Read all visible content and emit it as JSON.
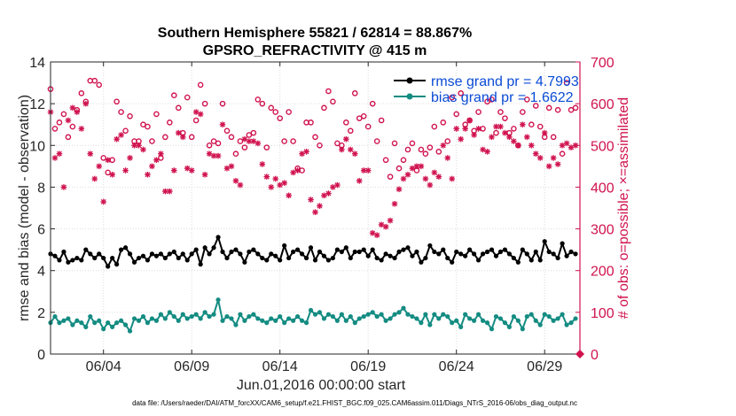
{
  "chart_data": {
    "type": "line",
    "title": "Southern Hemisphere 55821 / 62814 = 88.867%",
    "subtitle": "GPSRO_REFRACTIVITY @ 415 m",
    "xlabel": "Jun.01,2016 00:00:00 start",
    "ylabel": "rmse and bias (model - observation)",
    "ylabel_right": "# of obs: o=possible; ×=assimilated",
    "x_range": [
      1,
      31
    ],
    "ylim": [
      0,
      14
    ],
    "ylim_right": [
      0,
      700
    ],
    "x_ticks": [
      4,
      9,
      14,
      19,
      24,
      29
    ],
    "x_tick_labels": [
      "06/04",
      "06/09",
      "06/14",
      "06/19",
      "06/24",
      "06/29"
    ],
    "y_ticks": [
      0,
      2,
      4,
      6,
      8,
      10,
      12,
      14
    ],
    "y_ticks_right": [
      0,
      100,
      200,
      300,
      400,
      500,
      600,
      700
    ],
    "grid": true,
    "legend_position": "top-right",
    "footer": "data file: /Users/raeder/DAI/ATM_forcXX/CAM6_setup/f.e21.FHIST_BGC.f09_025.CAM6assim.011/Diags_NTrS_2016-06/obs_diag_output.nc",
    "colors": {
      "rmse": "#000000",
      "bias": "#148c82",
      "obs": "#d0134f"
    },
    "series": [
      {
        "name": "rmse grand pr = 4.7993",
        "color": "#000000",
        "axis": "left",
        "x": [
          1.0,
          1.25,
          1.5,
          1.75,
          2.0,
          2.25,
          2.5,
          2.75,
          3.0,
          3.25,
          3.5,
          3.75,
          4.0,
          4.25,
          4.5,
          4.75,
          5.0,
          5.25,
          5.5,
          5.75,
          6.0,
          6.25,
          6.5,
          6.75,
          7.0,
          7.25,
          7.5,
          7.75,
          8.0,
          8.25,
          8.5,
          8.75,
          9.0,
          9.25,
          9.5,
          9.75,
          10.0,
          10.25,
          10.5,
          10.75,
          11.0,
          11.25,
          11.5,
          11.75,
          12.0,
          12.25,
          12.5,
          12.75,
          13.0,
          13.25,
          13.5,
          13.75,
          14.0,
          14.25,
          14.5,
          14.75,
          15.0,
          15.25,
          15.5,
          15.75,
          16.0,
          16.25,
          16.5,
          16.75,
          17.0,
          17.25,
          17.5,
          17.75,
          18.0,
          18.25,
          18.5,
          18.75,
          19.0,
          19.25,
          19.5,
          19.75,
          20.0,
          20.25,
          20.5,
          20.75,
          21.0,
          21.25,
          21.5,
          21.75,
          22.0,
          22.25,
          22.5,
          22.75,
          23.0,
          23.25,
          23.5,
          23.75,
          24.0,
          24.25,
          24.5,
          24.75,
          25.0,
          25.25,
          25.5,
          25.75,
          26.0,
          26.25,
          26.5,
          26.75,
          27.0,
          27.25,
          27.5,
          27.75,
          28.0,
          28.25,
          28.5,
          28.75,
          29.0,
          29.25,
          29.5,
          29.75,
          30.0,
          30.25,
          30.5,
          30.75
        ],
        "values": [
          4.8,
          4.7,
          4.5,
          4.9,
          4.4,
          4.5,
          4.6,
          4.5,
          5.0,
          4.8,
          4.6,
          4.8,
          4.6,
          4.2,
          4.6,
          4.3,
          5.0,
          5.1,
          4.8,
          4.4,
          4.6,
          4.7,
          4.5,
          4.8,
          4.7,
          4.8,
          4.6,
          4.8,
          4.9,
          4.6,
          4.8,
          4.5,
          4.8,
          5.0,
          4.3,
          5.1,
          4.8,
          5.1,
          5.6,
          4.9,
          4.6,
          4.9,
          5.0,
          4.8,
          4.4,
          4.9,
          5.0,
          4.8,
          4.6,
          4.5,
          4.8,
          4.7,
          4.5,
          5.2,
          4.6,
          4.9,
          5.0,
          4.8,
          4.6,
          5.1,
          4.5,
          4.9,
          4.7,
          4.5,
          4.6,
          5.0,
          4.9,
          5.1,
          4.6,
          4.9,
          4.9,
          5.0,
          4.7,
          5.0,
          4.6,
          4.5,
          4.8,
          4.7,
          4.6,
          4.9,
          5.0,
          5.1,
          4.7,
          4.9,
          4.4,
          4.6,
          5.2,
          4.9,
          4.8,
          5.0,
          4.6,
          4.4,
          4.9,
          4.8,
          4.7,
          5.0,
          4.8,
          4.5,
          4.8,
          4.9,
          5.0,
          4.7,
          4.9,
          5.0,
          4.8,
          4.6,
          4.4,
          5.0,
          4.8,
          4.5,
          4.9,
          4.5,
          5.4,
          4.9,
          4.8,
          4.6,
          5.3,
          4.7,
          4.9,
          4.8
        ]
      },
      {
        "name": "bias grand pr = 1.6622",
        "color": "#148c82",
        "axis": "left",
        "x": [
          1.0,
          1.25,
          1.5,
          1.75,
          2.0,
          2.25,
          2.5,
          2.75,
          3.0,
          3.25,
          3.5,
          3.75,
          4.0,
          4.25,
          4.5,
          4.75,
          5.0,
          5.25,
          5.5,
          5.75,
          6.0,
          6.25,
          6.5,
          6.75,
          7.0,
          7.25,
          7.5,
          7.75,
          8.0,
          8.25,
          8.5,
          8.75,
          9.0,
          9.25,
          9.5,
          9.75,
          10.0,
          10.25,
          10.5,
          10.75,
          11.0,
          11.25,
          11.5,
          11.75,
          12.0,
          12.25,
          12.5,
          12.75,
          13.0,
          13.25,
          13.5,
          13.75,
          14.0,
          14.25,
          14.5,
          14.75,
          15.0,
          15.25,
          15.5,
          15.75,
          16.0,
          16.25,
          16.5,
          16.75,
          17.0,
          17.25,
          17.5,
          17.75,
          18.0,
          18.25,
          18.5,
          18.75,
          19.0,
          19.25,
          19.5,
          19.75,
          20.0,
          20.25,
          20.5,
          20.75,
          21.0,
          21.25,
          21.5,
          21.75,
          22.0,
          22.25,
          22.5,
          22.75,
          23.0,
          23.25,
          23.5,
          23.75,
          24.0,
          24.25,
          24.5,
          24.75,
          25.0,
          25.25,
          25.5,
          25.75,
          26.0,
          26.25,
          26.5,
          26.75,
          27.0,
          27.25,
          27.5,
          27.75,
          28.0,
          28.25,
          28.5,
          28.75,
          29.0,
          29.25,
          29.5,
          29.75,
          30.0,
          30.25,
          30.5,
          30.75
        ],
        "values": [
          1.5,
          1.8,
          1.5,
          1.6,
          1.7,
          1.4,
          1.6,
          1.5,
          1.3,
          1.8,
          1.5,
          1.6,
          1.2,
          1.5,
          1.3,
          1.5,
          1.6,
          1.4,
          1.1,
          1.7,
          1.6,
          1.8,
          1.5,
          1.7,
          1.6,
          1.9,
          1.7,
          2.0,
          1.8,
          1.6,
          1.9,
          1.7,
          1.8,
          1.9,
          1.7,
          2.0,
          1.8,
          1.9,
          2.6,
          1.6,
          1.8,
          1.7,
          1.4,
          1.9,
          1.6,
          1.8,
          1.9,
          1.7,
          1.6,
          1.5,
          1.7,
          1.6,
          1.8,
          1.5,
          1.7,
          1.6,
          1.8,
          1.6,
          1.5,
          2.1,
          1.9,
          2.0,
          1.7,
          1.9,
          1.8,
          1.6,
          1.9,
          1.6,
          1.8,
          1.5,
          1.7,
          1.8,
          1.9,
          2.0,
          1.8,
          1.9,
          1.6,
          1.7,
          1.9,
          2.0,
          2.2,
          1.9,
          1.8,
          1.7,
          1.5,
          1.9,
          1.4,
          1.9,
          1.7,
          1.9,
          1.8,
          1.5,
          1.6,
          1.3,
          1.9,
          1.7,
          1.6,
          1.9,
          1.6,
          1.5,
          1.2,
          1.8,
          1.7,
          1.5,
          1.3,
          1.8,
          1.6,
          1.2,
          1.8,
          1.9,
          1.6,
          1.4,
          1.9,
          1.8,
          1.6,
          1.7,
          1.9,
          1.4,
          1.5,
          1.7
        ]
      },
      {
        "name": "possible",
        "color": "#d0134f",
        "axis": "right",
        "marker": "o",
        "x": [
          1.0,
          1.25,
          1.5,
          1.75,
          2.0,
          2.25,
          2.5,
          2.75,
          3.0,
          3.25,
          3.5,
          3.75,
          4.0,
          4.25,
          4.5,
          4.75,
          5.0,
          5.25,
          5.5,
          5.75,
          6.0,
          6.25,
          6.5,
          6.75,
          7.0,
          7.25,
          7.5,
          7.75,
          8.0,
          8.25,
          8.5,
          8.75,
          9.0,
          9.25,
          9.5,
          9.75,
          10.0,
          10.25,
          10.5,
          10.75,
          11.0,
          11.25,
          11.5,
          11.75,
          12.0,
          12.25,
          12.5,
          12.75,
          13.0,
          13.25,
          13.5,
          13.75,
          14.0,
          14.25,
          14.5,
          14.75,
          15.0,
          15.25,
          15.5,
          15.75,
          16.0,
          16.25,
          16.5,
          16.75,
          17.0,
          17.25,
          17.5,
          17.75,
          18.0,
          18.25,
          18.5,
          18.75,
          19.0,
          19.25,
          19.5,
          19.75,
          20.0,
          20.25,
          20.5,
          20.75,
          21.0,
          21.25,
          21.5,
          21.75,
          22.0,
          22.25,
          22.5,
          22.75,
          23.0,
          23.25,
          23.5,
          23.75,
          24.0,
          24.25,
          24.5,
          24.75,
          25.0,
          25.25,
          25.5,
          25.75,
          26.0,
          26.25,
          26.5,
          26.75,
          27.0,
          27.25,
          27.5,
          27.75,
          28.0,
          28.25,
          28.5,
          28.75,
          29.0,
          29.25,
          29.5,
          29.75,
          30.0,
          30.25,
          30.5,
          30.75
        ],
        "values": [
          635,
          540,
          555,
          575,
          520,
          545,
          585,
          625,
          605,
          655,
          655,
          645,
          470,
          435,
          465,
          605,
          580,
          535,
          570,
          510,
          510,
          550,
          545,
          510,
          575,
          470,
          520,
          555,
          620,
          590,
          530,
          615,
          520,
          560,
          645,
          600,
          500,
          510,
          505,
          600,
          535,
          520,
          480,
          510,
          495,
          525,
          530,
          610,
          600,
          495,
          590,
          580,
          565,
          510,
          580,
          510,
          445,
          440,
          555,
          555,
          520,
          500,
          590,
          630,
          605,
          505,
          500,
          555,
          535,
          625,
          565,
          570,
          545,
          600,
          510,
          560,
          465,
          425,
          505,
          445,
          465,
          490,
          505,
          440,
          490,
          480,
          495,
          545,
          485,
          555,
          510,
          615,
          575,
          625,
          550,
          560,
          535,
          580,
          540,
          605,
          610,
          530,
          580,
          565,
          530,
          540,
          500,
          580,
          610,
          550,
          595,
          545,
          520,
          590,
          520,
          585,
          480,
          650,
          585,
          590
        ]
      },
      {
        "name": "assimilated",
        "color": "#d0134f",
        "axis": "right",
        "marker": "x",
        "x": [
          1.0,
          1.25,
          1.5,
          1.75,
          2.0,
          2.25,
          2.5,
          2.75,
          3.0,
          3.25,
          3.5,
          3.75,
          4.0,
          4.25,
          4.5,
          4.75,
          5.0,
          5.25,
          5.5,
          5.75,
          6.0,
          6.25,
          6.5,
          6.75,
          7.0,
          7.25,
          7.5,
          7.75,
          8.0,
          8.25,
          8.5,
          8.75,
          9.0,
          9.25,
          9.5,
          9.75,
          10.0,
          10.25,
          10.5,
          10.75,
          11.0,
          11.25,
          11.5,
          11.75,
          12.0,
          12.25,
          12.5,
          12.75,
          13.0,
          13.25,
          13.5,
          13.75,
          14.0,
          14.25,
          14.5,
          14.75,
          15.0,
          15.25,
          15.5,
          15.75,
          16.0,
          16.25,
          16.5,
          16.75,
          17.0,
          17.25,
          17.5,
          17.75,
          18.0,
          18.25,
          18.5,
          18.75,
          19.0,
          19.25,
          19.5,
          19.75,
          20.0,
          20.25,
          20.5,
          20.75,
          21.0,
          21.25,
          21.5,
          21.75,
          22.0,
          22.25,
          22.5,
          22.75,
          23.0,
          23.25,
          23.5,
          23.75,
          24.0,
          24.25,
          24.5,
          24.75,
          25.0,
          25.25,
          25.5,
          25.75,
          26.0,
          26.25,
          26.5,
          26.75,
          27.0,
          27.25,
          27.5,
          27.75,
          28.0,
          28.25,
          28.5,
          28.75,
          29.0,
          29.25,
          29.5,
          29.75,
          30.0,
          30.25,
          30.5,
          30.75
        ],
        "values": [
          580,
          470,
          480,
          400,
          560,
          590,
          580,
          540,
          600,
          480,
          420,
          450,
          365,
          465,
          430,
          515,
          525,
          440,
          470,
          500,
          500,
          490,
          430,
          450,
          465,
          480,
          390,
          390,
          440,
          530,
          520,
          445,
          440,
          580,
          575,
          430,
          480,
          475,
          475,
          550,
          445,
          450,
          415,
          405,
          515,
          510,
          510,
          505,
          455,
          425,
          400,
          420,
          405,
          410,
          380,
          435,
          440,
          480,
          485,
          370,
          340,
          355,
          380,
          385,
          400,
          405,
          490,
          515,
          490,
          480,
          415,
          440,
          440,
          290,
          285,
          310,
          305,
          320,
          360,
          395,
          420,
          430,
          445,
          450,
          450,
          420,
          405,
          435,
          425,
          500,
          470,
          420,
          540,
          515,
          540,
          560,
          525,
          540,
          490,
          485,
          520,
          545,
          545,
          530,
          520,
          510,
          500,
          550,
          520,
          500,
          480,
          470,
          530,
          450,
          470,
          455,
          500,
          505,
          495,
          500
        ]
      }
    ]
  }
}
